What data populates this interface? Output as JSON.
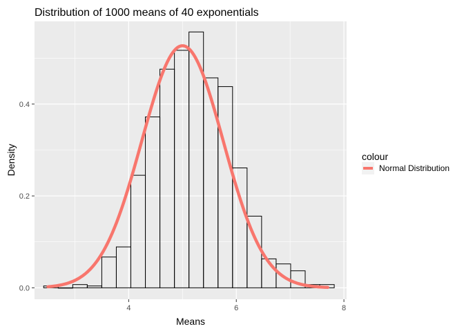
{
  "chart_data": {
    "type": "bar",
    "title": "Distribution of 1000 means of 40 exponentials",
    "xlabel": "Means",
    "ylabel": "Density",
    "xlim": [
      2.25,
      8.05
    ],
    "ylim": [
      -0.025,
      0.58
    ],
    "x_ticks": [
      4,
      6,
      8
    ],
    "x_tick_labels": [
      "4",
      "6",
      "8"
    ],
    "y_ticks": [
      0.0,
      0.2,
      0.4
    ],
    "y_tick_labels": [
      "0.0",
      "0.2",
      "0.4"
    ],
    "grid": true,
    "bins": [
      {
        "x0": 2.42,
        "x1": 2.69,
        "density": 0.004
      },
      {
        "x0": 2.69,
        "x1": 2.96,
        "density": 0.0
      },
      {
        "x0": 2.96,
        "x1": 3.23,
        "density": 0.007
      },
      {
        "x0": 3.23,
        "x1": 3.5,
        "density": 0.004
      },
      {
        "x0": 3.5,
        "x1": 3.77,
        "density": 0.067
      },
      {
        "x0": 3.77,
        "x1": 4.04,
        "density": 0.089
      },
      {
        "x0": 4.04,
        "x1": 4.31,
        "density": 0.245
      },
      {
        "x0": 4.31,
        "x1": 4.58,
        "density": 0.372
      },
      {
        "x0": 4.58,
        "x1": 4.85,
        "density": 0.476
      },
      {
        "x0": 4.85,
        "x1": 5.12,
        "density": 0.517
      },
      {
        "x0": 5.12,
        "x1": 5.39,
        "density": 0.557
      },
      {
        "x0": 5.39,
        "x1": 5.66,
        "density": 0.457
      },
      {
        "x0": 5.66,
        "x1": 5.93,
        "density": 0.438
      },
      {
        "x0": 5.93,
        "x1": 6.2,
        "density": 0.261
      },
      {
        "x0": 6.2,
        "x1": 6.47,
        "density": 0.156
      },
      {
        "x0": 6.47,
        "x1": 6.74,
        "density": 0.063
      },
      {
        "x0": 6.74,
        "x1": 7.01,
        "density": 0.052
      },
      {
        "x0": 7.01,
        "x1": 7.28,
        "density": 0.037
      },
      {
        "x0": 7.28,
        "x1": 7.55,
        "density": 0.007
      },
      {
        "x0": 7.55,
        "x1": 7.82,
        "density": 0.007
      }
    ],
    "series": [
      {
        "name": "Normal Distribution",
        "type": "line",
        "distribution": "normal",
        "mean": 5.0,
        "sd": 0.757,
        "x_range": [
          2.5,
          7.7
        ],
        "color": "#F8766D"
      }
    ],
    "legend": {
      "title": "colour",
      "placement": "right",
      "entries": [
        "Normal Distribution"
      ]
    },
    "colors": {
      "panel_background": "#EBEBEB",
      "grid": "#FFFFFF",
      "bar_outline": "#000000",
      "line": "#F8766D"
    }
  }
}
